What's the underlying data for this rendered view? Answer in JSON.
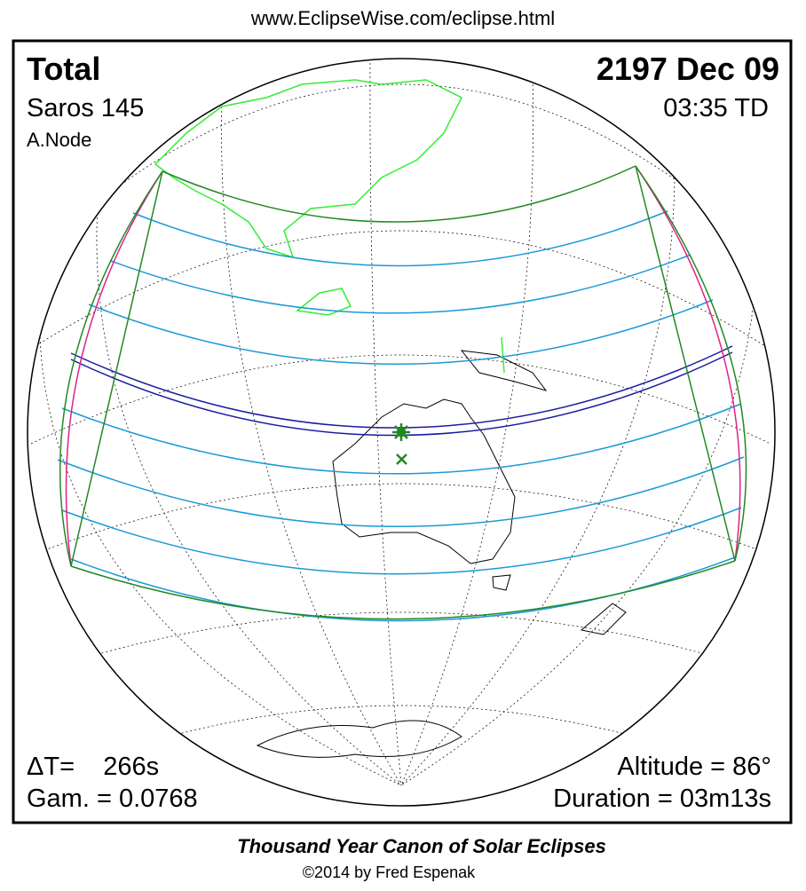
{
  "header": {
    "url": "www.EclipseWise.com/eclipse.html"
  },
  "labels": {
    "type": "Total",
    "date": "2197 Dec 09",
    "saros": "Saros 145",
    "time": "03:35 TD",
    "node": "A.Node",
    "delta_t": "ΔT=    266s",
    "gamma": "Gam. = 0.0768",
    "altitude": "Altitude = 86°",
    "duration": "Duration = 03m13s"
  },
  "footer": {
    "title": "Thousand Year Canon of Solar Eclipses",
    "credit": "©2014 by Fred Espenak"
  }
}
